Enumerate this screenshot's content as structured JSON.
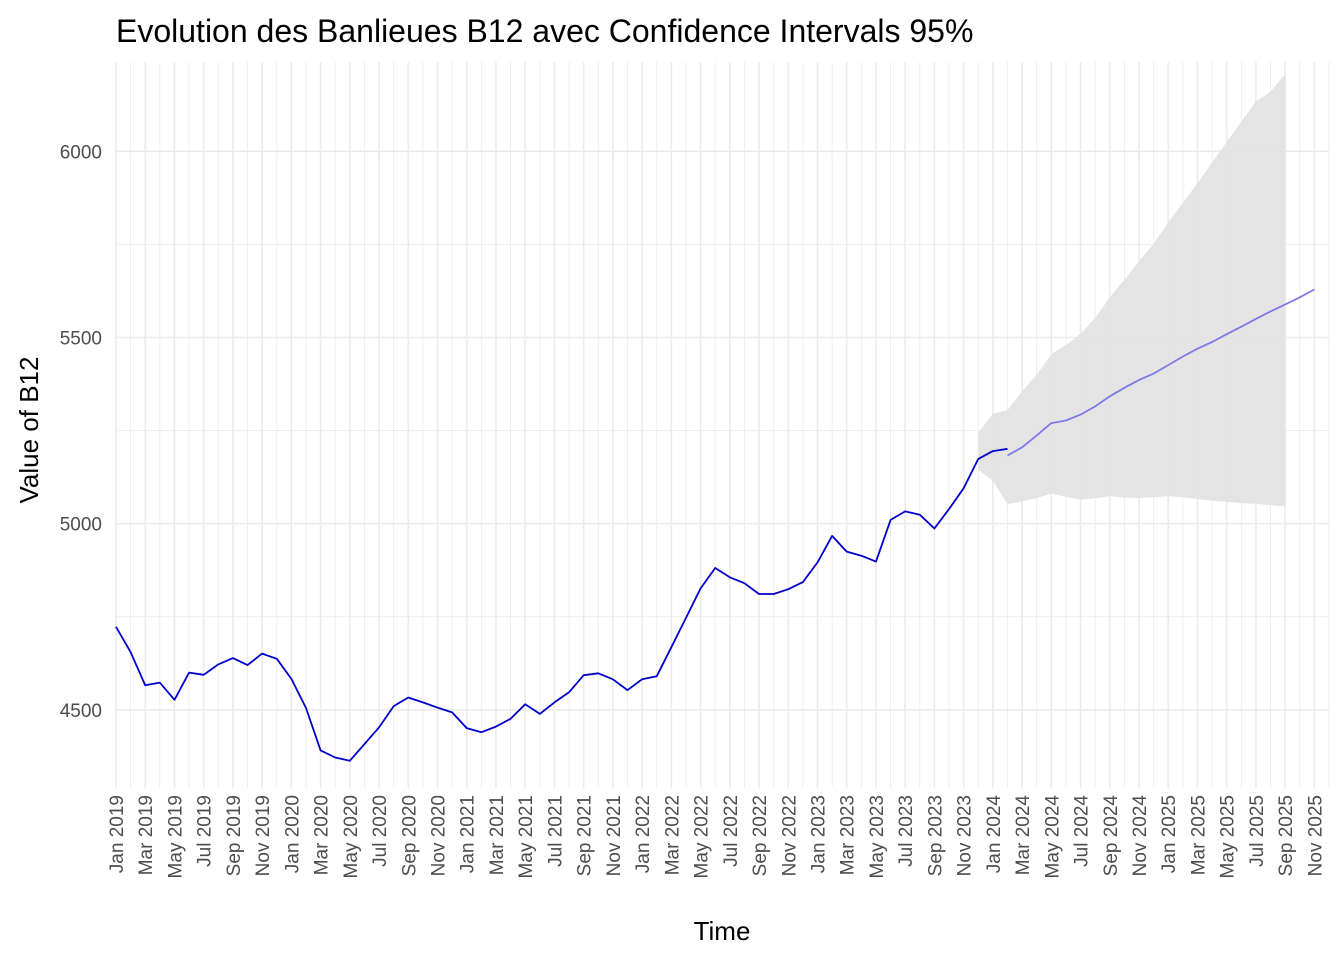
{
  "chart_data": {
    "type": "line",
    "title": "Evolution des Banlieues B12 avec Confidence Intervals 95%",
    "xlabel": "Time",
    "ylabel": "Value of B12",
    "ylim": [
      4290,
      6240
    ],
    "y_ticks": [
      4500,
      5000,
      5500,
      6000
    ],
    "x_start": "2019-01",
    "x_end": "2025-12",
    "x_tick_labels": [
      "Jan 2019",
      "Mar 2019",
      "May 2019",
      "Jul 2019",
      "Sep 2019",
      "Nov 2019",
      "Jan 2020",
      "Mar 2020",
      "May 2020",
      "Jul 2020",
      "Sep 2020",
      "Nov 2020",
      "Jan 2021",
      "Mar 2021",
      "May 2021",
      "Jul 2021",
      "Sep 2021",
      "Nov 2021",
      "Jan 2022",
      "Mar 2022",
      "May 2022",
      "Jul 2022",
      "Sep 2022",
      "Nov 2022",
      "Jan 2023",
      "Mar 2023",
      "May 2023",
      "Jul 2023",
      "Sep 2023",
      "Nov 2023",
      "Jan 2024",
      "Mar 2024",
      "May 2024",
      "Jul 2024",
      "Sep 2024",
      "Nov 2024",
      "Jan 2025",
      "Mar 2025",
      "May 2025",
      "Jul 2025",
      "Sep 2025",
      "Nov 2025"
    ],
    "grid": true,
    "legend": "none",
    "colors": {
      "observed": "#0000cc",
      "forecast": "#7b7be8",
      "ribbon": "#e3e3e3",
      "grid": "#ebebeb"
    },
    "series": [
      {
        "role": "observed",
        "x_start": "2019-01",
        "values": [
          4723,
          4655,
          4566,
          4573,
          4527,
          4600,
          4594,
          4622,
          4639,
          4620,
          4651,
          4637,
          4583,
          4505,
          4391,
          4372,
          4363,
          4408,
          4453,
          4510,
          4533,
          4520,
          4506,
          4493,
          4451,
          4440,
          4455,
          4476,
          4515,
          4489,
          4520,
          4547,
          4593,
          4598,
          4582,
          4553,
          4582,
          4590,
          4668,
          4747,
          4826,
          4881,
          4856,
          4840,
          4811,
          4811,
          4824,
          4843,
          4896,
          4967,
          4925,
          4914,
          4898,
          5010,
          5033,
          5024,
          4987,
          5039,
          5095,
          5174,
          5195,
          5201
        ]
      },
      {
        "role": "forecast",
        "x_start": "2024-02",
        "values": [
          5183,
          5205,
          5237,
          5270,
          5277,
          5293,
          5315,
          5342,
          5365,
          5386,
          5403,
          5426,
          5449,
          5470,
          5488,
          5509,
          5529,
          5550,
          5570,
          5589,
          5608,
          5629
        ]
      }
    ],
    "confidence_band": {
      "level": "95%",
      "x_start": "2023-12",
      "upper": [
        5245,
        5295,
        5305,
        5355,
        5400,
        5455,
        5480,
        5510,
        5552,
        5608,
        5655,
        5705,
        5752,
        5809,
        5862,
        5915,
        5970,
        6025,
        6080,
        6134,
        6160,
        6208
      ],
      "lower": [
        5145,
        5115,
        5052,
        5060,
        5068,
        5081,
        5072,
        5064,
        5068,
        5074,
        5070,
        5069,
        5071,
        5074,
        5071,
        5066,
        5062,
        5059,
        5055,
        5053,
        5050,
        5046
      ]
    }
  }
}
